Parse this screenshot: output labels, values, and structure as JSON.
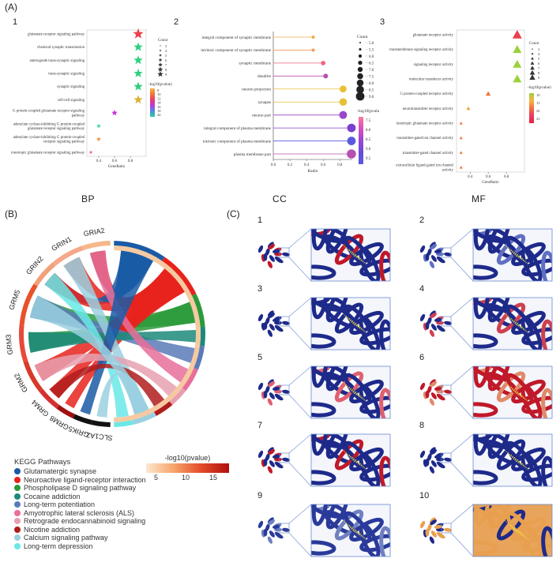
{
  "panel_labels": {
    "A": "(A)",
    "B": "(B)",
    "C": "(C)"
  },
  "sub_numbers": {
    "bp": "1",
    "cc": "2",
    "mf": "3"
  },
  "categories": {
    "bp": "BP",
    "cc": "CC",
    "mf": "MF"
  },
  "chart_data": [
    {
      "type": "scatter",
      "panel": "BP",
      "y_categories": [
        "glutamate receptor signaling pathway",
        "chemical synaptic transmission",
        "anterograde trans-synaptic signaling",
        "trans-synaptic signaling",
        "synaptic signaling",
        "cell-cell signaling",
        "G protein-coupled glutamate receptor signaling pathway",
        "adenylate cyclase-inhibiting G protein-coupled glutamate receptor signaling pathway",
        "adenylate cyclase-inhibiting G protein-coupled receptor signaling pathway",
        "ionotropic glutamate receptor signaling pathway"
      ],
      "x": [
        0.9,
        0.9,
        0.9,
        0.9,
        0.9,
        0.9,
        0.6,
        0.4,
        0.4,
        0.3
      ],
      "colors": [
        "#e8424b",
        "#2ecf7f",
        "#2ecf7f",
        "#2ecf7f",
        "#2ecf7f",
        "#d8b43a",
        "#c72ad8",
        "#2ecfa0",
        "#f28c2a",
        "#f25a8a"
      ],
      "xlabel": "GeneRatio",
      "xticks": [
        "0.4",
        "0.6",
        "0.8"
      ],
      "size_legend": {
        "title": "Count",
        "labels": [
          "3",
          "4",
          "5",
          "6",
          "7",
          "8",
          "9"
        ]
      },
      "color_legend": {
        "title": "-log10(pvalue)",
        "labels": [
          "8",
          "10",
          "12",
          "14",
          "16",
          "18",
          "20"
        ]
      }
    },
    {
      "type": "lollipop",
      "panel": "CC",
      "y_categories": [
        "integral component of synaptic membrane",
        "intrinsic component of synaptic membrane",
        "synaptic membrane",
        "dendrite",
        "neuron projection",
        "synapse",
        "neuron part",
        "integral component of plasma membrane",
        "intrinsic component of plasma membrane",
        "plasma membrane part"
      ],
      "x": [
        0.5,
        0.5,
        0.6,
        0.6,
        0.8,
        0.8,
        0.8,
        0.9,
        0.9,
        0.9
      ],
      "colors": [
        "#f7a84a",
        "#f79a5a",
        "#f0627c",
        "#b84fb0",
        "#e8c038",
        "#e8c038",
        "#9a47c8",
        "#7a3fd0",
        "#5a5ae0",
        "#b84fb0"
      ],
      "xlabel": "Radio",
      "xticks": [
        "0.0",
        "0.2",
        "0.4",
        "0.6",
        "0.8"
      ],
      "size_legend": {
        "title": "Count",
        "labels": [
          "5.0",
          "5.5",
          "6.0",
          "6.5",
          "7.0",
          "7.5",
          "8.0",
          "8.5",
          "9.0"
        ]
      },
      "color_legend": {
        "title": "-log10(pvalue)",
        "labels": [
          "7.5",
          "8.0",
          "8.5",
          "9.0",
          "9.5"
        ]
      }
    },
    {
      "type": "scatter",
      "panel": "MF",
      "y_categories": [
        "glutamate receptor activity",
        "transmembrane signaling receptor activity",
        "signaling receptor activity",
        "molecular transducer activity",
        "G protein-coupled receptor activity",
        "neurotransmitter receptor activity",
        "ionotropic glutamate receptor activity",
        "transmitter-gated ion channel activity",
        "transmitter-gated channel activity",
        "extracellular ligand-gated ion channel activity"
      ],
      "x": [
        0.9,
        0.9,
        0.9,
        0.9,
        0.6,
        0.4,
        0.3,
        0.3,
        0.3,
        0.3
      ],
      "colors": [
        "#e8424b",
        "#9ad23a",
        "#9ad23a",
        "#9ad23a",
        "#f2733a",
        "#f2a23a",
        "#f2733a",
        "#f2733a",
        "#f2733a",
        "#f2733a"
      ],
      "xlabel": "GeneRatio",
      "xticks": [
        "0.4",
        "0.6",
        "0.8"
      ],
      "size_legend": {
        "title": "Count",
        "labels": [
          "3",
          "4",
          "5",
          "6",
          "7",
          "8",
          "9"
        ]
      },
      "color_legend": {
        "title": "-log10(pvalue)",
        "labels": [
          "10",
          "15",
          "20",
          "25"
        ]
      }
    }
  ],
  "chord": {
    "genes": [
      "GRIA2",
      "GRIN1",
      "GRIN2",
      "GRM5",
      "GRM3",
      "GRM2",
      "GRM4",
      "GRM8",
      "GRIK5",
      "SLC1A2"
    ],
    "legend_title": "KEGG Pathways",
    "pathways": [
      {
        "name": "Glutamatergic synapse",
        "color": "#1a5aa6"
      },
      {
        "name": "Neuroactive ligand-receptor interaction",
        "color": "#e8221c"
      },
      {
        "name": "Phospholipase D signaling pathway",
        "color": "#2a9a3a"
      },
      {
        "name": "Cocaine addiction",
        "color": "#1c8a7a"
      },
      {
        "name": "Long-term potentiation",
        "color": "#5a7ab8"
      },
      {
        "name": "Amyotrophic lateral sclerosis (ALS)",
        "color": "#e86f9a"
      },
      {
        "name": "Retrograde endocannabinoid signaling",
        "color": "#e8a0b0"
      },
      {
        "name": "Nicotine addiction",
        "color": "#b01c1c"
      },
      {
        "name": "Calcium signaling pathway",
        "color": "#9ad0e0"
      },
      {
        "name": "Long-term depression",
        "color": "#6ae8e8"
      }
    ],
    "gradient_title": "-log10(pvalue)",
    "gradient_ticks": [
      "5",
      "10",
      "15"
    ]
  },
  "structure_numbers": [
    "1",
    "2",
    "3",
    "4",
    "5",
    "6",
    "7",
    "8",
    "9",
    "10"
  ]
}
